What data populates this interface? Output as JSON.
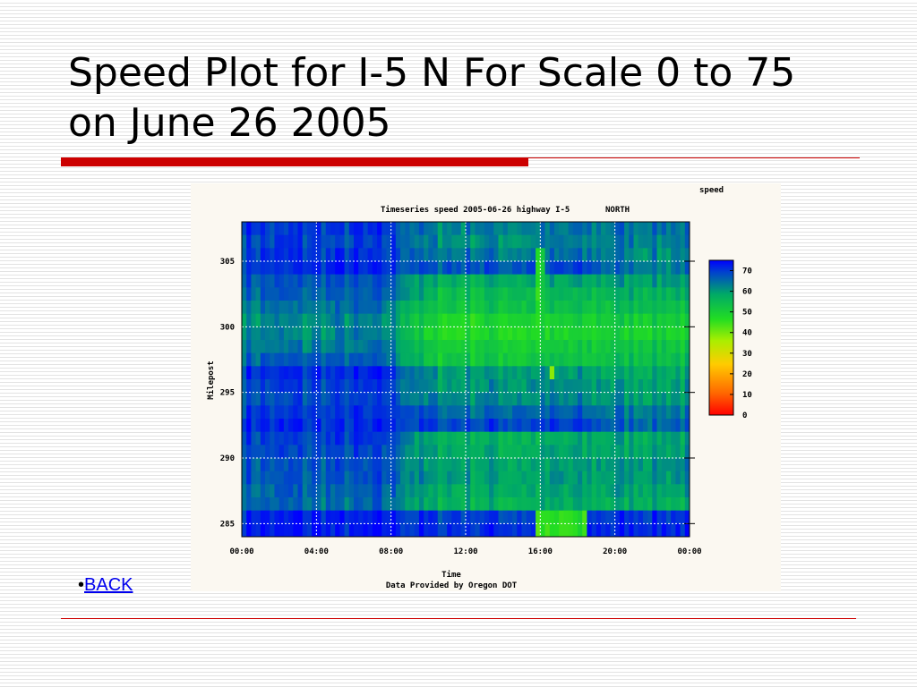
{
  "slide": {
    "title": "Speed Plot for I-5 N For Scale 0 to 75 on June 26 2005",
    "back_bullet": "•",
    "back_label": "BACK"
  },
  "colors": {
    "title_rule": "#cc0000",
    "link": "#0000ee"
  },
  "chart_data": {
    "type": "heatmap",
    "title": "Timeseries speed 2005-06-26 highway I-5",
    "direction": "NORTH",
    "colorbar_title": "speed",
    "xlabel": "Time",
    "ylabel": "Milepost",
    "credit": "Data Provided by Oregon DOT",
    "x_ticks": [
      "00:00",
      "04:00",
      "08:00",
      "12:00",
      "16:00",
      "20:00",
      "00:00"
    ],
    "x_range_hours": [
      0,
      24
    ],
    "y_ticks": [
      285,
      290,
      295,
      300,
      305
    ],
    "y_range": [
      284,
      308
    ],
    "colorbar_ticks": [
      70,
      60,
      50,
      40,
      30,
      20,
      10,
      0
    ],
    "colorbar_range": [
      0,
      75
    ],
    "colorscale": [
      "#ff0000",
      "#ff6600",
      "#ffcc00",
      "#aaee00",
      "#22dd22",
      "#00aa66",
      "#0044cc",
      "#0000ff"
    ],
    "grid": true,
    "milepost_bands": [
      {
        "mp_low": 307.0,
        "mp_high": 308.0,
        "morning": 70,
        "midday": 63,
        "evening": 65
      },
      {
        "mp_low": 306.0,
        "mp_high": 307.0,
        "morning": 69,
        "midday": 62,
        "evening": 63
      },
      {
        "mp_low": 305.0,
        "mp_high": 306.0,
        "morning": 70,
        "midday": 64,
        "evening": 62
      },
      {
        "mp_low": 304.0,
        "mp_high": 305.0,
        "morning": 71,
        "midday": 68,
        "evening": 64
      },
      {
        "mp_low": 303.0,
        "mp_high": 304.0,
        "morning": 67,
        "midday": 58,
        "evening": 60
      },
      {
        "mp_low": 302.0,
        "mp_high": 303.0,
        "morning": 66,
        "midday": 55,
        "evening": 57
      },
      {
        "mp_low": 301.0,
        "mp_high": 302.0,
        "morning": 64,
        "midday": 53,
        "evening": 55
      },
      {
        "mp_low": 300.0,
        "mp_high": 301.0,
        "morning": 62,
        "midday": 49,
        "evening": 52
      },
      {
        "mp_low": 299.0,
        "mp_high": 300.0,
        "morning": 62,
        "midday": 48,
        "evening": 50
      },
      {
        "mp_low": 298.0,
        "mp_high": 299.0,
        "morning": 63,
        "midday": 51,
        "evening": 53
      },
      {
        "mp_low": 297.0,
        "mp_high": 298.0,
        "morning": 66,
        "midday": 52,
        "evening": 55
      },
      {
        "mp_low": 296.0,
        "mp_high": 297.0,
        "morning": 71,
        "midday": 60,
        "evening": 58
      },
      {
        "mp_low": 295.0,
        "mp_high": 296.0,
        "morning": 69,
        "midday": 61,
        "evening": 60
      },
      {
        "mp_low": 294.0,
        "mp_high": 295.0,
        "morning": 68,
        "midday": 62,
        "evening": 61
      },
      {
        "mp_low": 293.0,
        "mp_high": 294.0,
        "morning": 70,
        "midday": 66,
        "evening": 64
      },
      {
        "mp_low": 292.0,
        "mp_high": 293.0,
        "morning": 71,
        "midday": 69,
        "evening": 66
      },
      {
        "mp_low": 291.0,
        "mp_high": 292.0,
        "morning": 69,
        "midday": 57,
        "evening": 59
      },
      {
        "mp_low": 290.0,
        "mp_high": 291.0,
        "morning": 68,
        "midday": 58,
        "evening": 60
      },
      {
        "mp_low": 289.0,
        "mp_high": 290.0,
        "morning": 67,
        "midday": 59,
        "evening": 62
      },
      {
        "mp_low": 288.0,
        "mp_high": 289.0,
        "morning": 67,
        "midday": 60,
        "evening": 61
      },
      {
        "mp_low": 287.0,
        "mp_high": 288.0,
        "morning": 66,
        "midday": 58,
        "evening": 60
      },
      {
        "mp_low": 286.0,
        "mp_high": 287.0,
        "morning": 65,
        "midday": 57,
        "evening": 58
      },
      {
        "mp_low": 285.0,
        "mp_high": 286.0,
        "morning": 72,
        "midday": 70,
        "evening": 71
      },
      {
        "mp_low": 284.0,
        "mp_high": 285.0,
        "morning": 72,
        "midday": 71,
        "evening": 72
      }
    ],
    "slowdowns": [
      {
        "start": "15:50",
        "end": "18:30",
        "mp_low": 284.0,
        "mp_high": 286.4,
        "speed": 45
      },
      {
        "start": "15:50",
        "end": "16:20",
        "mp_low": 298.0,
        "mp_high": 306.0,
        "speed": 48
      },
      {
        "start": "16:30",
        "end": "16:45",
        "mp_low": 296.2,
        "mp_high": 297.0,
        "speed": 38
      }
    ]
  }
}
